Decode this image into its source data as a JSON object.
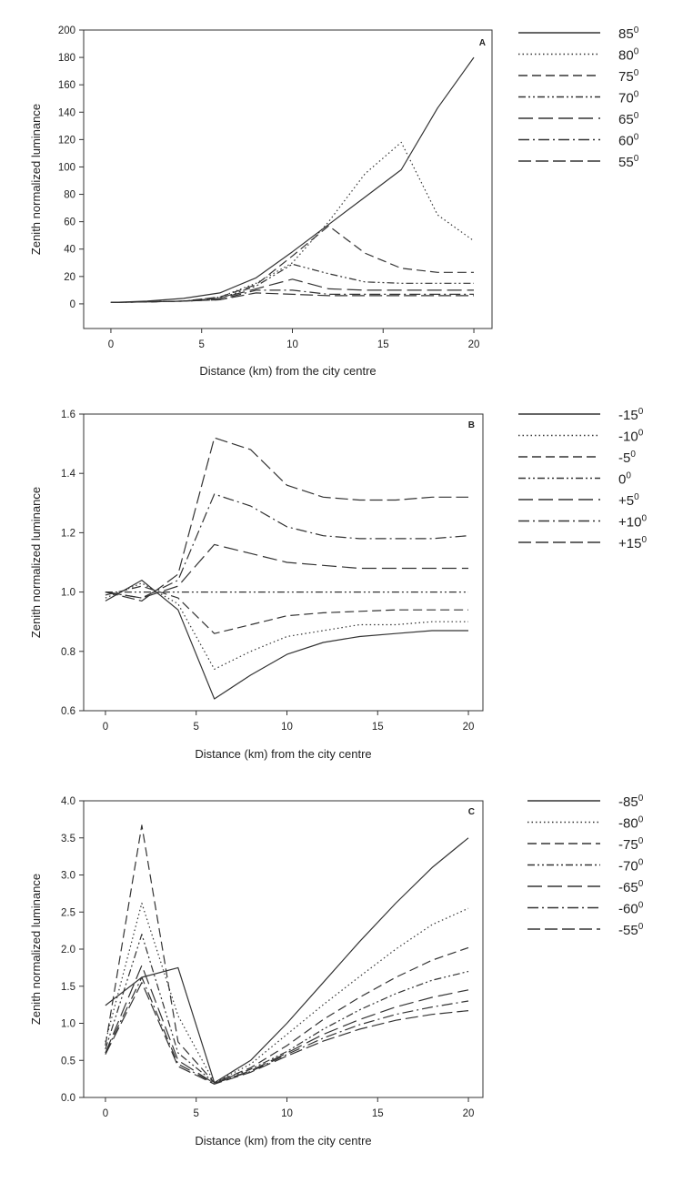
{
  "chart_data": [
    {
      "type": "line",
      "panel": "A",
      "xlabel": "Distance (km) from the city centre",
      "ylabel": "Zenith normalized luminance",
      "xlim": [
        -1.5,
        21
      ],
      "ylim": [
        -18,
        200
      ],
      "x_ticks": [
        0,
        5,
        10,
        15,
        20
      ],
      "y_ticks": [
        0,
        20,
        40,
        60,
        80,
        100,
        120,
        140,
        160,
        180,
        200
      ],
      "legend_position": "right",
      "series": [
        {
          "name": "85",
          "dash": "",
          "x": [
            0,
            2,
            4,
            6,
            8,
            10,
            12,
            14,
            16,
            18,
            20
          ],
          "y": [
            1,
            2,
            4,
            8,
            19,
            38,
            58,
            78,
            98,
            143,
            180
          ]
        },
        {
          "name": "80",
          "dash": "1.5,3",
          "x": [
            0,
            2,
            4,
            6,
            8,
            10,
            12,
            14,
            16,
            18,
            20
          ],
          "y": [
            1,
            1.5,
            2,
            5,
            15,
            30,
            60,
            95,
            118,
            65,
            46
          ]
        },
        {
          "name": "75",
          "dash": "10,5",
          "x": [
            0,
            2,
            4,
            6,
            8,
            10,
            12,
            14,
            16,
            18,
            20
          ],
          "y": [
            1,
            1.5,
            2,
            5,
            14,
            35,
            57,
            37,
            26,
            23,
            23
          ]
        },
        {
          "name": "70",
          "dash": "8,3,2,3,2,3",
          "x": [
            0,
            2,
            4,
            6,
            8,
            10,
            12,
            14,
            16,
            18,
            20
          ],
          "y": [
            1,
            1.5,
            2,
            4,
            13,
            29,
            22,
            16,
            15,
            15,
            15
          ]
        },
        {
          "name": "65",
          "dash": "16,6",
          "x": [
            0,
            2,
            4,
            6,
            8,
            10,
            12,
            14,
            16,
            18,
            20
          ],
          "y": [
            1,
            1.5,
            2,
            4,
            11,
            18,
            11,
            10,
            10,
            10,
            10
          ]
        },
        {
          "name": "60",
          "dash": "12,4,2,4",
          "x": [
            0,
            2,
            4,
            6,
            8,
            10,
            12,
            14,
            16,
            18,
            20
          ],
          "y": [
            1,
            1.5,
            2,
            3,
            10,
            10,
            7,
            7,
            7,
            7,
            7
          ]
        },
        {
          "name": "55",
          "dash": "14,5",
          "x": [
            0,
            2,
            4,
            6,
            8,
            10,
            12,
            14,
            16,
            18,
            20
          ],
          "y": [
            1,
            1.5,
            2,
            3,
            8,
            7,
            6,
            6,
            6,
            6,
            6
          ]
        }
      ]
    },
    {
      "type": "line",
      "panel": "B",
      "xlabel": "Distance (km) from the city centre",
      "ylabel": "Zenith normalized luminance",
      "xlim": [
        -1.2,
        20.8
      ],
      "ylim": [
        0.6,
        1.6
      ],
      "x_ticks": [
        0,
        5,
        10,
        15,
        20
      ],
      "y_ticks": [
        0.6,
        0.8,
        1.0,
        1.2,
        1.4,
        1.6
      ],
      "legend_position": "right",
      "series": [
        {
          "name": "-15",
          "dash": "",
          "x": [
            0,
            2,
            4,
            6,
            8,
            10,
            12,
            14,
            16,
            18,
            20
          ],
          "y": [
            0.97,
            1.04,
            0.94,
            0.64,
            0.72,
            0.79,
            0.83,
            0.85,
            0.86,
            0.87,
            0.87
          ]
        },
        {
          "name": "-10",
          "dash": "1.5,3",
          "x": [
            0,
            2,
            4,
            6,
            8,
            10,
            12,
            14,
            16,
            18,
            20
          ],
          "y": [
            0.98,
            1.03,
            0.96,
            0.74,
            0.8,
            0.85,
            0.87,
            0.89,
            0.89,
            0.9,
            0.9
          ]
        },
        {
          "name": "-5",
          "dash": "10,5",
          "x": [
            0,
            2,
            4,
            6,
            8,
            10,
            12,
            14,
            16,
            18,
            20
          ],
          "y": [
            0.99,
            1.02,
            0.98,
            0.86,
            0.89,
            0.92,
            0.93,
            0.935,
            0.94,
            0.94,
            0.94
          ]
        },
        {
          "name": "0",
          "dash": "8,3,2,3,2,3",
          "x": [
            0,
            2,
            4,
            6,
            8,
            10,
            12,
            14,
            16,
            18,
            20
          ],
          "y": [
            1.0,
            1.0,
            1.0,
            1.0,
            1.0,
            1.0,
            1.0,
            1.0,
            1.0,
            1.0,
            1.0
          ]
        },
        {
          "name": "+5",
          "dash": "16,6",
          "x": [
            0,
            2,
            4,
            6,
            8,
            10,
            12,
            14,
            16,
            18,
            20
          ],
          "y": [
            1.0,
            0.98,
            1.02,
            1.16,
            1.13,
            1.1,
            1.09,
            1.08,
            1.08,
            1.08,
            1.08
          ]
        },
        {
          "name": "+10",
          "dash": "12,4,2,4",
          "x": [
            0,
            2,
            4,
            6,
            8,
            10,
            12,
            14,
            16,
            18,
            20
          ],
          "y": [
            1.0,
            0.98,
            1.04,
            1.33,
            1.29,
            1.22,
            1.19,
            1.18,
            1.18,
            1.18,
            1.19
          ]
        },
        {
          "name": "+15",
          "dash": "14,5",
          "x": [
            0,
            2,
            4,
            6,
            8,
            10,
            12,
            14,
            16,
            18,
            20
          ],
          "y": [
            1.0,
            0.97,
            1.06,
            1.52,
            1.48,
            1.36,
            1.32,
            1.31,
            1.31,
            1.32,
            1.32
          ]
        }
      ]
    },
    {
      "type": "line",
      "panel": "C",
      "xlabel": "Distance (km) from the city centre",
      "ylabel": "Zenith normalized luminance",
      "xlim": [
        -1.2,
        20.8
      ],
      "ylim": [
        0,
        4.0
      ],
      "x_ticks": [
        0,
        5,
        10,
        15,
        20
      ],
      "y_ticks": [
        0.0,
        0.5,
        1.0,
        1.5,
        2.0,
        2.5,
        3.0,
        3.5,
        4.0
      ],
      "legend_position": "right",
      "series": [
        {
          "name": "-85",
          "dash": "",
          "x": [
            0,
            2,
            4,
            6,
            8,
            10,
            12,
            14,
            16,
            18,
            20
          ],
          "y": [
            1.24,
            1.62,
            1.75,
            0.2,
            0.5,
            1.0,
            1.55,
            2.1,
            2.62,
            3.1,
            3.5
          ]
        },
        {
          "name": "-80",
          "dash": "1.5,3",
          "x": [
            0,
            2,
            4,
            6,
            8,
            10,
            12,
            14,
            16,
            18,
            20
          ],
          "y": [
            0.75,
            2.62,
            1.1,
            0.2,
            0.45,
            0.85,
            1.25,
            1.63,
            2.0,
            2.33,
            2.55
          ]
        },
        {
          "name": "-75",
          "dash": "10,5",
          "x": [
            0,
            2,
            4,
            6,
            8,
            10,
            12,
            14,
            16,
            18,
            20
          ],
          "y": [
            0.7,
            3.67,
            0.75,
            0.2,
            0.4,
            0.7,
            1.05,
            1.35,
            1.62,
            1.85,
            2.02
          ]
        },
        {
          "name": "-70",
          "dash": "8,3,2,3,2,3",
          "x": [
            0,
            2,
            4,
            6,
            8,
            10,
            12,
            14,
            16,
            18,
            20
          ],
          "y": [
            0.65,
            2.2,
            0.6,
            0.2,
            0.38,
            0.62,
            0.92,
            1.18,
            1.4,
            1.58,
            1.7
          ]
        },
        {
          "name": "-65",
          "dash": "16,6",
          "x": [
            0,
            2,
            4,
            6,
            8,
            10,
            12,
            14,
            16,
            18,
            20
          ],
          "y": [
            0.6,
            1.78,
            0.5,
            0.19,
            0.36,
            0.6,
            0.85,
            1.05,
            1.22,
            1.35,
            1.45
          ]
        },
        {
          "name": "-60",
          "dash": "12,4,2,4",
          "x": [
            0,
            2,
            4,
            6,
            8,
            10,
            12,
            14,
            16,
            18,
            20
          ],
          "y": [
            0.6,
            1.62,
            0.45,
            0.19,
            0.35,
            0.58,
            0.8,
            0.98,
            1.12,
            1.22,
            1.3
          ]
        },
        {
          "name": "-55",
          "dash": "14,5",
          "x": [
            0,
            2,
            4,
            6,
            8,
            10,
            12,
            14,
            16,
            18,
            20
          ],
          "y": [
            0.58,
            1.55,
            0.42,
            0.18,
            0.34,
            0.56,
            0.76,
            0.92,
            1.04,
            1.12,
            1.17
          ]
        }
      ]
    }
  ]
}
